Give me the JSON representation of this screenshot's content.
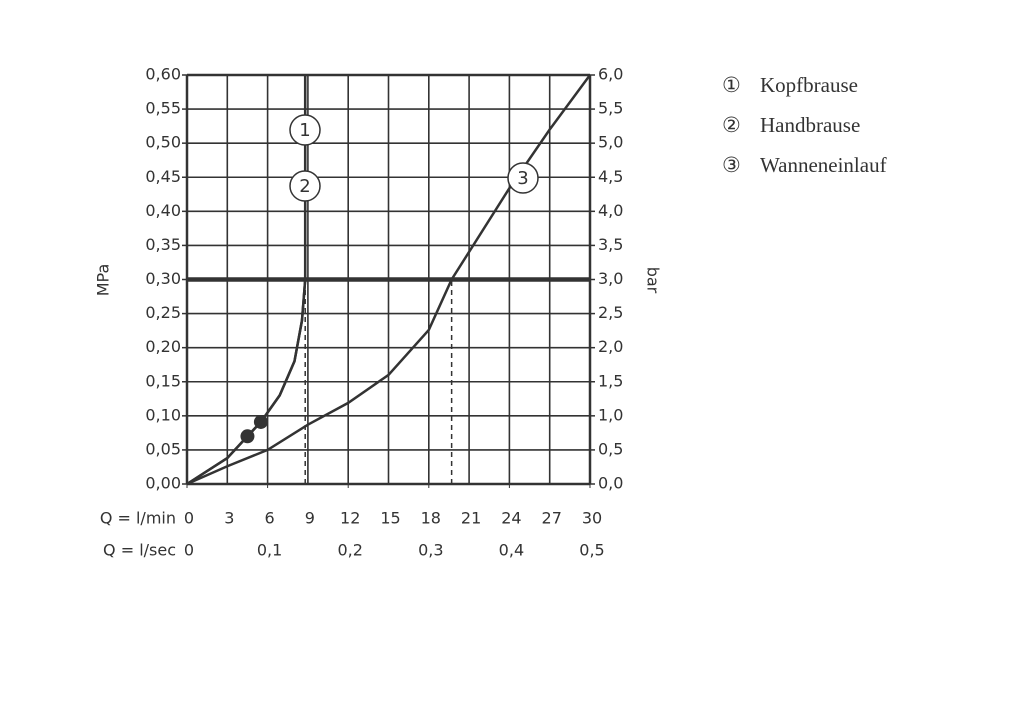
{
  "chart_data": {
    "type": "line",
    "x_label": "Q = l/min",
    "x2_label": "Q = l/sec",
    "y_label": "MPa",
    "y2_label": "bar",
    "xlim": [
      0,
      30
    ],
    "xticks": [
      0,
      3,
      6,
      9,
      12,
      15,
      18,
      21,
      24,
      27,
      30
    ],
    "x2lim": [
      0,
      0.5
    ],
    "x2ticks": [
      0,
      {
        "value": 0.1,
        "label": "0,1"
      },
      {
        "value": 0.2,
        "label": "0,2"
      },
      {
        "value": 0.3,
        "label": "0,3"
      },
      {
        "value": 0.4,
        "label": "0,4"
      },
      {
        "value": 0.5,
        "label": "0,5"
      }
    ],
    "ylim": [
      0,
      0.6
    ],
    "yticks": [
      {
        "value": 0,
        "label": "0,00"
      },
      {
        "value": 0.05,
        "label": "0,05"
      },
      {
        "value": 0.1,
        "label": "0,10"
      },
      {
        "value": 0.15,
        "label": "0,15"
      },
      {
        "value": 0.2,
        "label": "0,20"
      },
      {
        "value": 0.25,
        "label": "0,25"
      },
      {
        "value": 0.3,
        "label": "0,30"
      },
      {
        "value": 0.35,
        "label": "0,35"
      },
      {
        "value": 0.4,
        "label": "0,40"
      },
      {
        "value": 0.45,
        "label": "0,45"
      },
      {
        "value": 0.5,
        "label": "0,50"
      },
      {
        "value": 0.55,
        "label": "0,55"
      },
      {
        "value": 0.6,
        "label": "0,60"
      }
    ],
    "y2lim": [
      0,
      6
    ],
    "y2ticks": [
      {
        "value": 0,
        "label": "0,0"
      },
      {
        "value": 0.5,
        "label": "0,5"
      },
      {
        "value": 1,
        "label": "1,0"
      },
      {
        "value": 1.5,
        "label": "1,5"
      },
      {
        "value": 2,
        "label": "2,0"
      },
      {
        "value": 2.5,
        "label": "2,5"
      },
      {
        "value": 3,
        "label": "3,0"
      },
      {
        "value": 3.5,
        "label": "3,5"
      },
      {
        "value": 4,
        "label": "4,0"
      },
      {
        "value": 4.5,
        "label": "4,5"
      },
      {
        "value": 5,
        "label": "5,0"
      },
      {
        "value": 5.5,
        "label": "5,5"
      },
      {
        "value": 6,
        "label": "6,0"
      }
    ],
    "grid": true,
    "hline": 0.3,
    "vlines": [
      {
        "x": 8.8,
        "y": 0.3
      },
      {
        "x": 19.7,
        "y": 0.3
      }
    ],
    "series": [
      {
        "name": "Kopfbrause",
        "symbol": "①",
        "label": "1",
        "color": "#333333",
        "x": [
          0,
          3,
          4.5,
          5.5,
          6.9,
          8.0,
          8.56,
          8.8,
          8.8
        ],
        "values": [
          0,
          0.038,
          0.07,
          0.091,
          0.13,
          0.18,
          0.24,
          0.3,
          0.6
        ],
        "points": [
          {
            "x": 5.5,
            "y": 0.091
          }
        ]
      },
      {
        "name": "Handbrause",
        "symbol": "②",
        "label": "2",
        "color": "#333333",
        "x": [
          0,
          3,
          4.5,
          5.5,
          6.9,
          8.0,
          8.56,
          8.8,
          8.8
        ],
        "values": [
          0,
          0.038,
          0.07,
          0.091,
          0.13,
          0.18,
          0.24,
          0.3,
          0.6
        ],
        "points": [
          {
            "x": 4.5,
            "y": 0.07
          }
        ]
      },
      {
        "name": "Wanneneinlauf",
        "symbol": "③",
        "label": "3",
        "color": "#333333",
        "x": [
          0,
          3,
          6,
          9,
          12,
          15,
          18,
          19.7,
          24,
          27,
          30
        ],
        "values": [
          0,
          0.026,
          0.05,
          0.087,
          0.119,
          0.16,
          0.226,
          0.3,
          0.434,
          0.52,
          0.6
        ],
        "points": []
      }
    ]
  }
}
